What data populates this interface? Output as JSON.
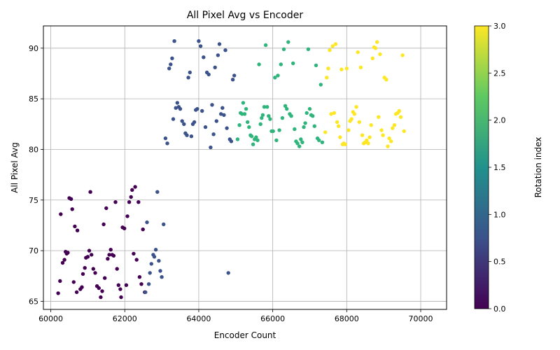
{
  "chart_data": {
    "type": "scatter",
    "title": "All Pixel Avg vs Encoder",
    "xlabel": "Encoder Count",
    "ylabel": "All Pixel Avg",
    "xlim": [
      59800,
      70700
    ],
    "ylim": [
      64.2,
      92.2
    ],
    "xticks": [
      60000,
      62000,
      64000,
      66000,
      68000,
      70000
    ],
    "yticks": [
      65,
      70,
      75,
      80,
      85,
      90
    ],
    "grid": true,
    "marker_color": "by rotation index (viridis colormap)",
    "colorbar": {
      "label": "Rotation index",
      "min": 0.0,
      "max": 3.0,
      "ticks": [
        "0.0",
        "0.5",
        "1.0",
        "1.5",
        "2.0",
        "2.5",
        "3.0"
      ],
      "colormap": [
        "#440154",
        "#3b528b",
        "#21918c",
        "#5ec962",
        "#fde725"
      ]
    },
    "series": [
      {
        "rotation_index": 0,
        "color": "#440154",
        "points": [
          [
            60200,
            65.8
          ],
          [
            60250,
            67.0
          ],
          [
            60270,
            73.6
          ],
          [
            60320,
            68.8
          ],
          [
            60370,
            69.1
          ],
          [
            60400,
            69.9
          ],
          [
            60430,
            69.7
          ],
          [
            60460,
            69.8
          ],
          [
            60500,
            75.2
          ],
          [
            60550,
            75.1
          ],
          [
            60580,
            74.1
          ],
          [
            60620,
            66.9
          ],
          [
            60650,
            72.4
          ],
          [
            60700,
            65.9
          ],
          [
            60720,
            72.0
          ],
          [
            60800,
            66.2
          ],
          [
            60840,
            66.4
          ],
          [
            60870,
            67.7
          ],
          [
            60920,
            68.3
          ],
          [
            60950,
            69.3
          ],
          [
            61000,
            69.4
          ],
          [
            61040,
            70.0
          ],
          [
            61070,
            75.8
          ],
          [
            61100,
            69.6
          ],
          [
            61150,
            68.2
          ],
          [
            61200,
            67.8
          ],
          [
            61250,
            66.5
          ],
          [
            61300,
            66.3
          ],
          [
            61350,
            65.4
          ],
          [
            61390,
            66.0
          ],
          [
            61430,
            72.6
          ],
          [
            61460,
            67.3
          ],
          [
            61500,
            74.2
          ],
          [
            61540,
            69.2
          ],
          [
            61580,
            69.6
          ],
          [
            61620,
            70.1
          ],
          [
            61660,
            69.6
          ],
          [
            61700,
            69.5
          ],
          [
            61750,
            74.8
          ],
          [
            61790,
            68.2
          ],
          [
            61830,
            66.6
          ],
          [
            61880,
            66.2
          ],
          [
            61900,
            65.4
          ],
          [
            61940,
            72.3
          ],
          [
            61990,
            72.2
          ],
          [
            62040,
            66.6
          ],
          [
            62070,
            73.4
          ],
          [
            62120,
            74.8
          ],
          [
            62170,
            75.3
          ],
          [
            62200,
            76.0
          ],
          [
            62240,
            69.7
          ],
          [
            62280,
            76.3
          ],
          [
            62320,
            69.1
          ],
          [
            62370,
            74.8
          ],
          [
            62400,
            67.4
          ],
          [
            62450,
            66.7
          ],
          [
            62490,
            72.1
          ],
          [
            62540,
            65.9
          ]
        ]
      },
      {
        "rotation_index": 1,
        "color": "#3b528b",
        "points": [
          [
            62560,
            65.9
          ],
          [
            62600,
            72.8
          ],
          [
            62650,
            66.7
          ],
          [
            62680,
            67.8
          ],
          [
            62720,
            68.7
          ],
          [
            62770,
            69.6
          ],
          [
            62800,
            69.4
          ],
          [
            62840,
            70.1
          ],
          [
            62880,
            75.8
          ],
          [
            62920,
            69.0
          ],
          [
            62960,
            68.0
          ],
          [
            63000,
            67.4
          ],
          [
            63050,
            72.6
          ],
          [
            63100,
            81.1
          ],
          [
            63150,
            80.6
          ],
          [
            63200,
            88.0
          ],
          [
            63240,
            88.4
          ],
          [
            63280,
            89.0
          ],
          [
            63310,
            83.0
          ],
          [
            63340,
            90.7
          ],
          [
            63380,
            84.1
          ],
          [
            63420,
            84.6
          ],
          [
            63460,
            84.2
          ],
          [
            63500,
            84.0
          ],
          [
            63550,
            82.8
          ],
          [
            63600,
            82.5
          ],
          [
            63640,
            81.6
          ],
          [
            63680,
            81.4
          ],
          [
            63720,
            87.1
          ],
          [
            63760,
            87.6
          ],
          [
            63800,
            81.3
          ],
          [
            63840,
            82.5
          ],
          [
            63880,
            82.7
          ],
          [
            63920,
            83.9
          ],
          [
            63960,
            84.0
          ],
          [
            64000,
            90.7
          ],
          [
            64050,
            90.2
          ],
          [
            64090,
            83.8
          ],
          [
            64130,
            89.1
          ],
          [
            64180,
            82.2
          ],
          [
            64220,
            87.6
          ],
          [
            64270,
            87.4
          ],
          [
            64320,
            80.2
          ],
          [
            64360,
            84.4
          ],
          [
            64400,
            81.5
          ],
          [
            64440,
            88.1
          ],
          [
            64480,
            82.8
          ],
          [
            64520,
            89.3
          ],
          [
            64560,
            90.4
          ],
          [
            64600,
            83.5
          ],
          [
            64640,
            84.1
          ],
          [
            64680,
            83.4
          ],
          [
            64720,
            89.8
          ],
          [
            64760,
            82.1
          ],
          [
            64800,
            67.8
          ],
          [
            64840,
            81.0
          ],
          [
            64880,
            80.8
          ],
          [
            64920,
            86.9
          ],
          [
            64960,
            87.3
          ]
        ]
      },
      {
        "rotation_index": 2,
        "color": "#2fb47c",
        "points": [
          [
            65050,
            81.0
          ],
          [
            65100,
            82.4
          ],
          [
            65130,
            83.6
          ],
          [
            65170,
            83.5
          ],
          [
            65200,
            84.6
          ],
          [
            65240,
            83.5
          ],
          [
            65280,
            84.0
          ],
          [
            65320,
            82.7
          ],
          [
            65360,
            82.2
          ],
          [
            65400,
            81.4
          ],
          [
            65430,
            81.3
          ],
          [
            65470,
            80.5
          ],
          [
            65510,
            81.0
          ],
          [
            65550,
            81.2
          ],
          [
            65590,
            80.9
          ],
          [
            65630,
            88.4
          ],
          [
            65670,
            82.5
          ],
          [
            65700,
            83.1
          ],
          [
            65730,
            83.4
          ],
          [
            65770,
            84.2
          ],
          [
            65810,
            90.3
          ],
          [
            65850,
            84.2
          ],
          [
            65890,
            83.3
          ],
          [
            65930,
            83.0
          ],
          [
            65970,
            81.8
          ],
          [
            66010,
            81.8
          ],
          [
            66060,
            87.1
          ],
          [
            66100,
            80.9
          ],
          [
            66140,
            87.3
          ],
          [
            66180,
            81.9
          ],
          [
            66220,
            88.4
          ],
          [
            66260,
            83.1
          ],
          [
            66300,
            89.9
          ],
          [
            66340,
            84.3
          ],
          [
            66380,
            84.0
          ],
          [
            66420,
            90.6
          ],
          [
            66460,
            83.5
          ],
          [
            66500,
            83.3
          ],
          [
            66550,
            88.5
          ],
          [
            66590,
            82.0
          ],
          [
            66630,
            80.8
          ],
          [
            66670,
            80.6
          ],
          [
            66720,
            80.3
          ],
          [
            66760,
            81.0
          ],
          [
            66800,
            80.7
          ],
          [
            66840,
            82.2
          ],
          [
            66880,
            82.6
          ],
          [
            66920,
            83.6
          ],
          [
            66960,
            89.9
          ],
          [
            67000,
            84.0
          ],
          [
            67040,
            83.4
          ],
          [
            67080,
            83.3
          ],
          [
            67130,
            82.3
          ],
          [
            67170,
            88.3
          ],
          [
            67210,
            81.1
          ],
          [
            67250,
            80.9
          ],
          [
            67300,
            86.4
          ],
          [
            67340,
            80.7
          ]
        ]
      },
      {
        "rotation_index": 3,
        "color": "#fde725",
        "points": [
          [
            67420,
            81.7
          ],
          [
            67460,
            87.1
          ],
          [
            67500,
            88.0
          ],
          [
            67540,
            89.8
          ],
          [
            67580,
            83.5
          ],
          [
            67620,
            90.2
          ],
          [
            67660,
            83.6
          ],
          [
            67700,
            90.4
          ],
          [
            67740,
            82.7
          ],
          [
            67780,
            82.3
          ],
          [
            67820,
            81.2
          ],
          [
            67860,
            87.9
          ],
          [
            67890,
            80.5
          ],
          [
            67920,
            80.6
          ],
          [
            67960,
            80.5
          ],
          [
            68000,
            88.0
          ],
          [
            68050,
            81.9
          ],
          [
            68090,
            82.8
          ],
          [
            68130,
            83.0
          ],
          [
            68170,
            83.7
          ],
          [
            68210,
            83.5
          ],
          [
            68260,
            84.2
          ],
          [
            68300,
            89.6
          ],
          [
            68340,
            82.7
          ],
          [
            68380,
            88.1
          ],
          [
            68420,
            81.4
          ],
          [
            68460,
            80.6
          ],
          [
            68500,
            80.7
          ],
          [
            68540,
            80.9
          ],
          [
            68580,
            80.6
          ],
          [
            68620,
            81.2
          ],
          [
            68660,
            82.4
          ],
          [
            68700,
            89.0
          ],
          [
            68740,
            90.1
          ],
          [
            68780,
            90.0
          ],
          [
            68820,
            90.6
          ],
          [
            68860,
            83.2
          ],
          [
            68900,
            89.4
          ],
          [
            68940,
            81.9
          ],
          [
            68980,
            81.4
          ],
          [
            69020,
            87.1
          ],
          [
            69070,
            86.9
          ],
          [
            69110,
            80.3
          ],
          [
            69150,
            81.1
          ],
          [
            69200,
            80.8
          ],
          [
            69240,
            82.1
          ],
          [
            69290,
            82.4
          ],
          [
            69330,
            83.5
          ],
          [
            69380,
            83.6
          ],
          [
            69420,
            83.8
          ],
          [
            69460,
            83.2
          ],
          [
            69510,
            89.3
          ],
          [
            69550,
            81.8
          ]
        ]
      }
    ]
  }
}
